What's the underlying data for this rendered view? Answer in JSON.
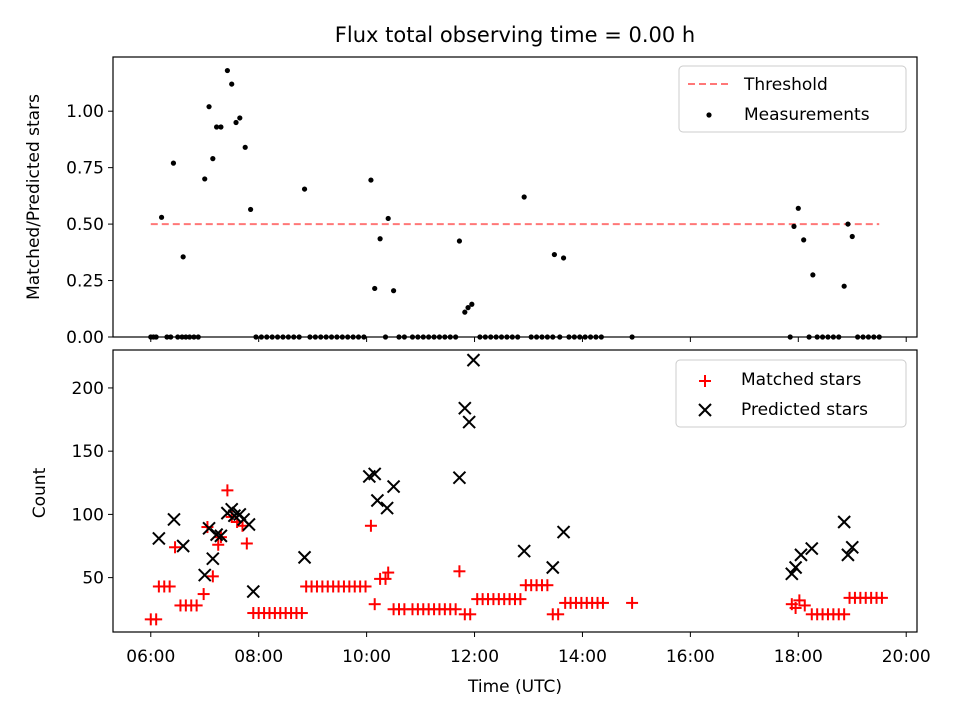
{
  "figure": {
    "title": "Flux total observing time = 0.00 h",
    "xlabel": "Time (UTC)",
    "xticks": [
      "06:00",
      "08:00",
      "10:00",
      "12:00",
      "14:00",
      "16:00",
      "18:00",
      "20:00"
    ]
  },
  "chart_data": [
    {
      "type": "scatter",
      "title": "Flux total observing time = 0.00 h",
      "ylabel": "Matched/Predicted stars",
      "xlim_hours": [
        5.3,
        20.2
      ],
      "ylim": [
        0.0,
        1.24
      ],
      "yticks": [
        "0.00",
        "0.25",
        "0.50",
        "0.75",
        "1.00"
      ],
      "legend_position": "top-right",
      "threshold": {
        "name": "Threshold",
        "value": 0.5,
        "x_range": [
          6.0,
          19.5
        ],
        "color": "#ff7777"
      },
      "series": [
        {
          "name": "Measurements",
          "color": "#000000",
          "points": [
            [
              6.0,
              0
            ],
            [
              6.05,
              0
            ],
            [
              6.1,
              0
            ],
            [
              6.2,
              0.53
            ],
            [
              6.3,
              0
            ],
            [
              6.37,
              0
            ],
            [
              6.42,
              0.77
            ],
            [
              6.5,
              0
            ],
            [
              6.58,
              0
            ],
            [
              6.6,
              0.355
            ],
            [
              6.65,
              0
            ],
            [
              6.72,
              0
            ],
            [
              6.8,
              0
            ],
            [
              6.88,
              0
            ],
            [
              7.0,
              0.7
            ],
            [
              7.08,
              1.02
            ],
            [
              7.15,
              0.79
            ],
            [
              7.22,
              0.93
            ],
            [
              7.3,
              0.93
            ],
            [
              7.42,
              1.18
            ],
            [
              7.5,
              1.12
            ],
            [
              7.58,
              0.95
            ],
            [
              7.65,
              0.97
            ],
            [
              7.75,
              0.84
            ],
            [
              7.85,
              0.565
            ],
            [
              7.95,
              0
            ],
            [
              8.05,
              0
            ],
            [
              8.15,
              0
            ],
            [
              8.25,
              0
            ],
            [
              8.35,
              0
            ],
            [
              8.45,
              0
            ],
            [
              8.55,
              0
            ],
            [
              8.65,
              0
            ],
            [
              8.75,
              0
            ],
            [
              8.85,
              0.655
            ],
            [
              8.95,
              0
            ],
            [
              9.05,
              0
            ],
            [
              9.15,
              0
            ],
            [
              9.25,
              0
            ],
            [
              9.35,
              0
            ],
            [
              9.45,
              0
            ],
            [
              9.55,
              0
            ],
            [
              9.65,
              0
            ],
            [
              9.75,
              0
            ],
            [
              9.85,
              0
            ],
            [
              9.95,
              0
            ],
            [
              10.08,
              0.695
            ],
            [
              10.15,
              0.215
            ],
            [
              10.25,
              0.435
            ],
            [
              10.35,
              0
            ],
            [
              10.4,
              0.525
            ],
            [
              10.5,
              0.205
            ],
            [
              10.6,
              0
            ],
            [
              10.7,
              0
            ],
            [
              10.85,
              0
            ],
            [
              10.95,
              0
            ],
            [
              11.05,
              0
            ],
            [
              11.15,
              0
            ],
            [
              11.25,
              0
            ],
            [
              11.35,
              0
            ],
            [
              11.45,
              0
            ],
            [
              11.55,
              0
            ],
            [
              11.65,
              0
            ],
            [
              11.72,
              0.425
            ],
            [
              11.82,
              0.11
            ],
            [
              11.88,
              0.13
            ],
            [
              11.95,
              0.145
            ],
            [
              12.1,
              0
            ],
            [
              12.2,
              0
            ],
            [
              12.3,
              0
            ],
            [
              12.4,
              0
            ],
            [
              12.5,
              0
            ],
            [
              12.6,
              0
            ],
            [
              12.7,
              0
            ],
            [
              12.8,
              0
            ],
            [
              12.92,
              0.62
            ],
            [
              13.05,
              0
            ],
            [
              13.15,
              0
            ],
            [
              13.25,
              0
            ],
            [
              13.35,
              0
            ],
            [
              13.45,
              0
            ],
            [
              13.48,
              0.365
            ],
            [
              13.58,
              0
            ],
            [
              13.65,
              0.35
            ],
            [
              13.75,
              0
            ],
            [
              13.85,
              0
            ],
            [
              13.95,
              0
            ],
            [
              14.05,
              0
            ],
            [
              14.15,
              0
            ],
            [
              14.25,
              0
            ],
            [
              14.35,
              0
            ],
            [
              14.92,
              0
            ],
            [
              17.85,
              0
            ],
            [
              17.92,
              0.49
            ],
            [
              18.0,
              0.57
            ],
            [
              18.1,
              0.43
            ],
            [
              18.2,
              0
            ],
            [
              18.27,
              0.275
            ],
            [
              18.35,
              0
            ],
            [
              18.45,
              0
            ],
            [
              18.55,
              0
            ],
            [
              18.65,
              0
            ],
            [
              18.75,
              0
            ],
            [
              18.85,
              0.225
            ],
            [
              18.92,
              0.5
            ],
            [
              19.0,
              0.445
            ],
            [
              19.1,
              0
            ],
            [
              19.2,
              0
            ],
            [
              19.3,
              0
            ],
            [
              19.4,
              0
            ],
            [
              19.5,
              0
            ]
          ]
        }
      ]
    },
    {
      "type": "scatter",
      "ylabel": "Count",
      "xlabel": "Time (UTC)",
      "xlim_hours": [
        5.3,
        20.2
      ],
      "ylim": [
        7,
        230
      ],
      "yticks": [
        "50",
        "100",
        "150",
        "200"
      ],
      "legend_position": "top-right",
      "series": [
        {
          "name": "Matched stars",
          "marker": "plus",
          "color": "#ff0000",
          "points": [
            [
              6.0,
              17
            ],
            [
              6.1,
              17
            ],
            [
              6.15,
              43
            ],
            [
              6.25,
              43
            ],
            [
              6.35,
              43
            ],
            [
              6.45,
              74
            ],
            [
              6.55,
              28
            ],
            [
              6.65,
              28
            ],
            [
              6.75,
              28
            ],
            [
              6.85,
              28
            ],
            [
              6.98,
              37
            ],
            [
              7.05,
              90
            ],
            [
              7.15,
              51
            ],
            [
              7.25,
              76
            ],
            [
              7.3,
              82
            ],
            [
              7.42,
              119
            ],
            [
              7.5,
              98
            ],
            [
              7.6,
              94
            ],
            [
              7.7,
              91
            ],
            [
              7.78,
              77
            ],
            [
              7.9,
              22
            ],
            [
              8.0,
              22
            ],
            [
              8.1,
              22
            ],
            [
              8.2,
              22
            ],
            [
              8.3,
              22
            ],
            [
              8.4,
              22
            ],
            [
              8.5,
              22
            ],
            [
              8.6,
              22
            ],
            [
              8.7,
              22
            ],
            [
              8.8,
              22
            ],
            [
              8.88,
              43
            ],
            [
              8.98,
              43
            ],
            [
              9.08,
              43
            ],
            [
              9.18,
              43
            ],
            [
              9.28,
              43
            ],
            [
              9.38,
              43
            ],
            [
              9.48,
              43
            ],
            [
              9.58,
              43
            ],
            [
              9.68,
              43
            ],
            [
              9.78,
              43
            ],
            [
              9.88,
              43
            ],
            [
              9.98,
              43
            ],
            [
              10.08,
              91
            ],
            [
              10.15,
              29
            ],
            [
              10.25,
              49
            ],
            [
              10.35,
              49
            ],
            [
              10.4,
              54
            ],
            [
              10.5,
              25
            ],
            [
              10.6,
              25
            ],
            [
              10.7,
              25
            ],
            [
              10.85,
              25
            ],
            [
              10.95,
              25
            ],
            [
              11.05,
              25
            ],
            [
              11.15,
              25
            ],
            [
              11.25,
              25
            ],
            [
              11.35,
              25
            ],
            [
              11.45,
              25
            ],
            [
              11.55,
              25
            ],
            [
              11.65,
              25
            ],
            [
              11.72,
              55
            ],
            [
              11.82,
              21
            ],
            [
              11.92,
              21
            ],
            [
              12.05,
              33
            ],
            [
              12.15,
              33
            ],
            [
              12.25,
              33
            ],
            [
              12.35,
              33
            ],
            [
              12.45,
              33
            ],
            [
              12.55,
              33
            ],
            [
              12.65,
              33
            ],
            [
              12.75,
              33
            ],
            [
              12.85,
              33
            ],
            [
              12.95,
              44
            ],
            [
              13.05,
              44
            ],
            [
              13.15,
              44
            ],
            [
              13.25,
              44
            ],
            [
              13.35,
              44
            ],
            [
              13.45,
              21
            ],
            [
              13.55,
              21
            ],
            [
              13.68,
              30
            ],
            [
              13.78,
              30
            ],
            [
              13.88,
              30
            ],
            [
              13.98,
              30
            ],
            [
              14.08,
              30
            ],
            [
              14.18,
              30
            ],
            [
              14.28,
              30
            ],
            [
              14.38,
              30
            ],
            [
              14.92,
              30
            ],
            [
              17.88,
              29
            ],
            [
              17.95,
              26
            ],
            [
              18.02,
              32
            ],
            [
              18.12,
              28
            ],
            [
              18.25,
              21
            ],
            [
              18.35,
              21
            ],
            [
              18.45,
              21
            ],
            [
              18.55,
              21
            ],
            [
              18.65,
              21
            ],
            [
              18.75,
              21
            ],
            [
              18.85,
              21
            ],
            [
              18.95,
              34
            ],
            [
              19.05,
              34
            ],
            [
              19.15,
              34
            ],
            [
              19.25,
              34
            ],
            [
              19.35,
              34
            ],
            [
              19.45,
              34
            ],
            [
              19.55,
              34
            ]
          ]
        },
        {
          "name": "Predicted stars",
          "marker": "x",
          "color": "#000000",
          "points": [
            [
              6.15,
              81
            ],
            [
              6.43,
              96
            ],
            [
              6.6,
              75
            ],
            [
              7.0,
              52
            ],
            [
              7.08,
              89
            ],
            [
              7.15,
              65
            ],
            [
              7.22,
              84
            ],
            [
              7.3,
              83
            ],
            [
              7.42,
              101
            ],
            [
              7.5,
              104
            ],
            [
              7.55,
              99
            ],
            [
              7.65,
              100
            ],
            [
              7.72,
              96
            ],
            [
              7.82,
              92
            ],
            [
              7.9,
              39
            ],
            [
              8.85,
              66
            ],
            [
              10.05,
              130
            ],
            [
              10.15,
              132
            ],
            [
              10.2,
              111
            ],
            [
              10.38,
              105
            ],
            [
              10.5,
              122
            ],
            [
              11.72,
              129
            ],
            [
              11.82,
              184
            ],
            [
              11.9,
              173
            ],
            [
              11.98,
              222
            ],
            [
              12.92,
              71
            ],
            [
              13.45,
              58
            ],
            [
              13.65,
              86
            ],
            [
              17.88,
              53
            ],
            [
              17.95,
              58
            ],
            [
              18.05,
              68
            ],
            [
              18.25,
              73
            ],
            [
              18.85,
              94
            ],
            [
              18.92,
              68
            ],
            [
              19.0,
              74
            ]
          ]
        }
      ]
    }
  ]
}
